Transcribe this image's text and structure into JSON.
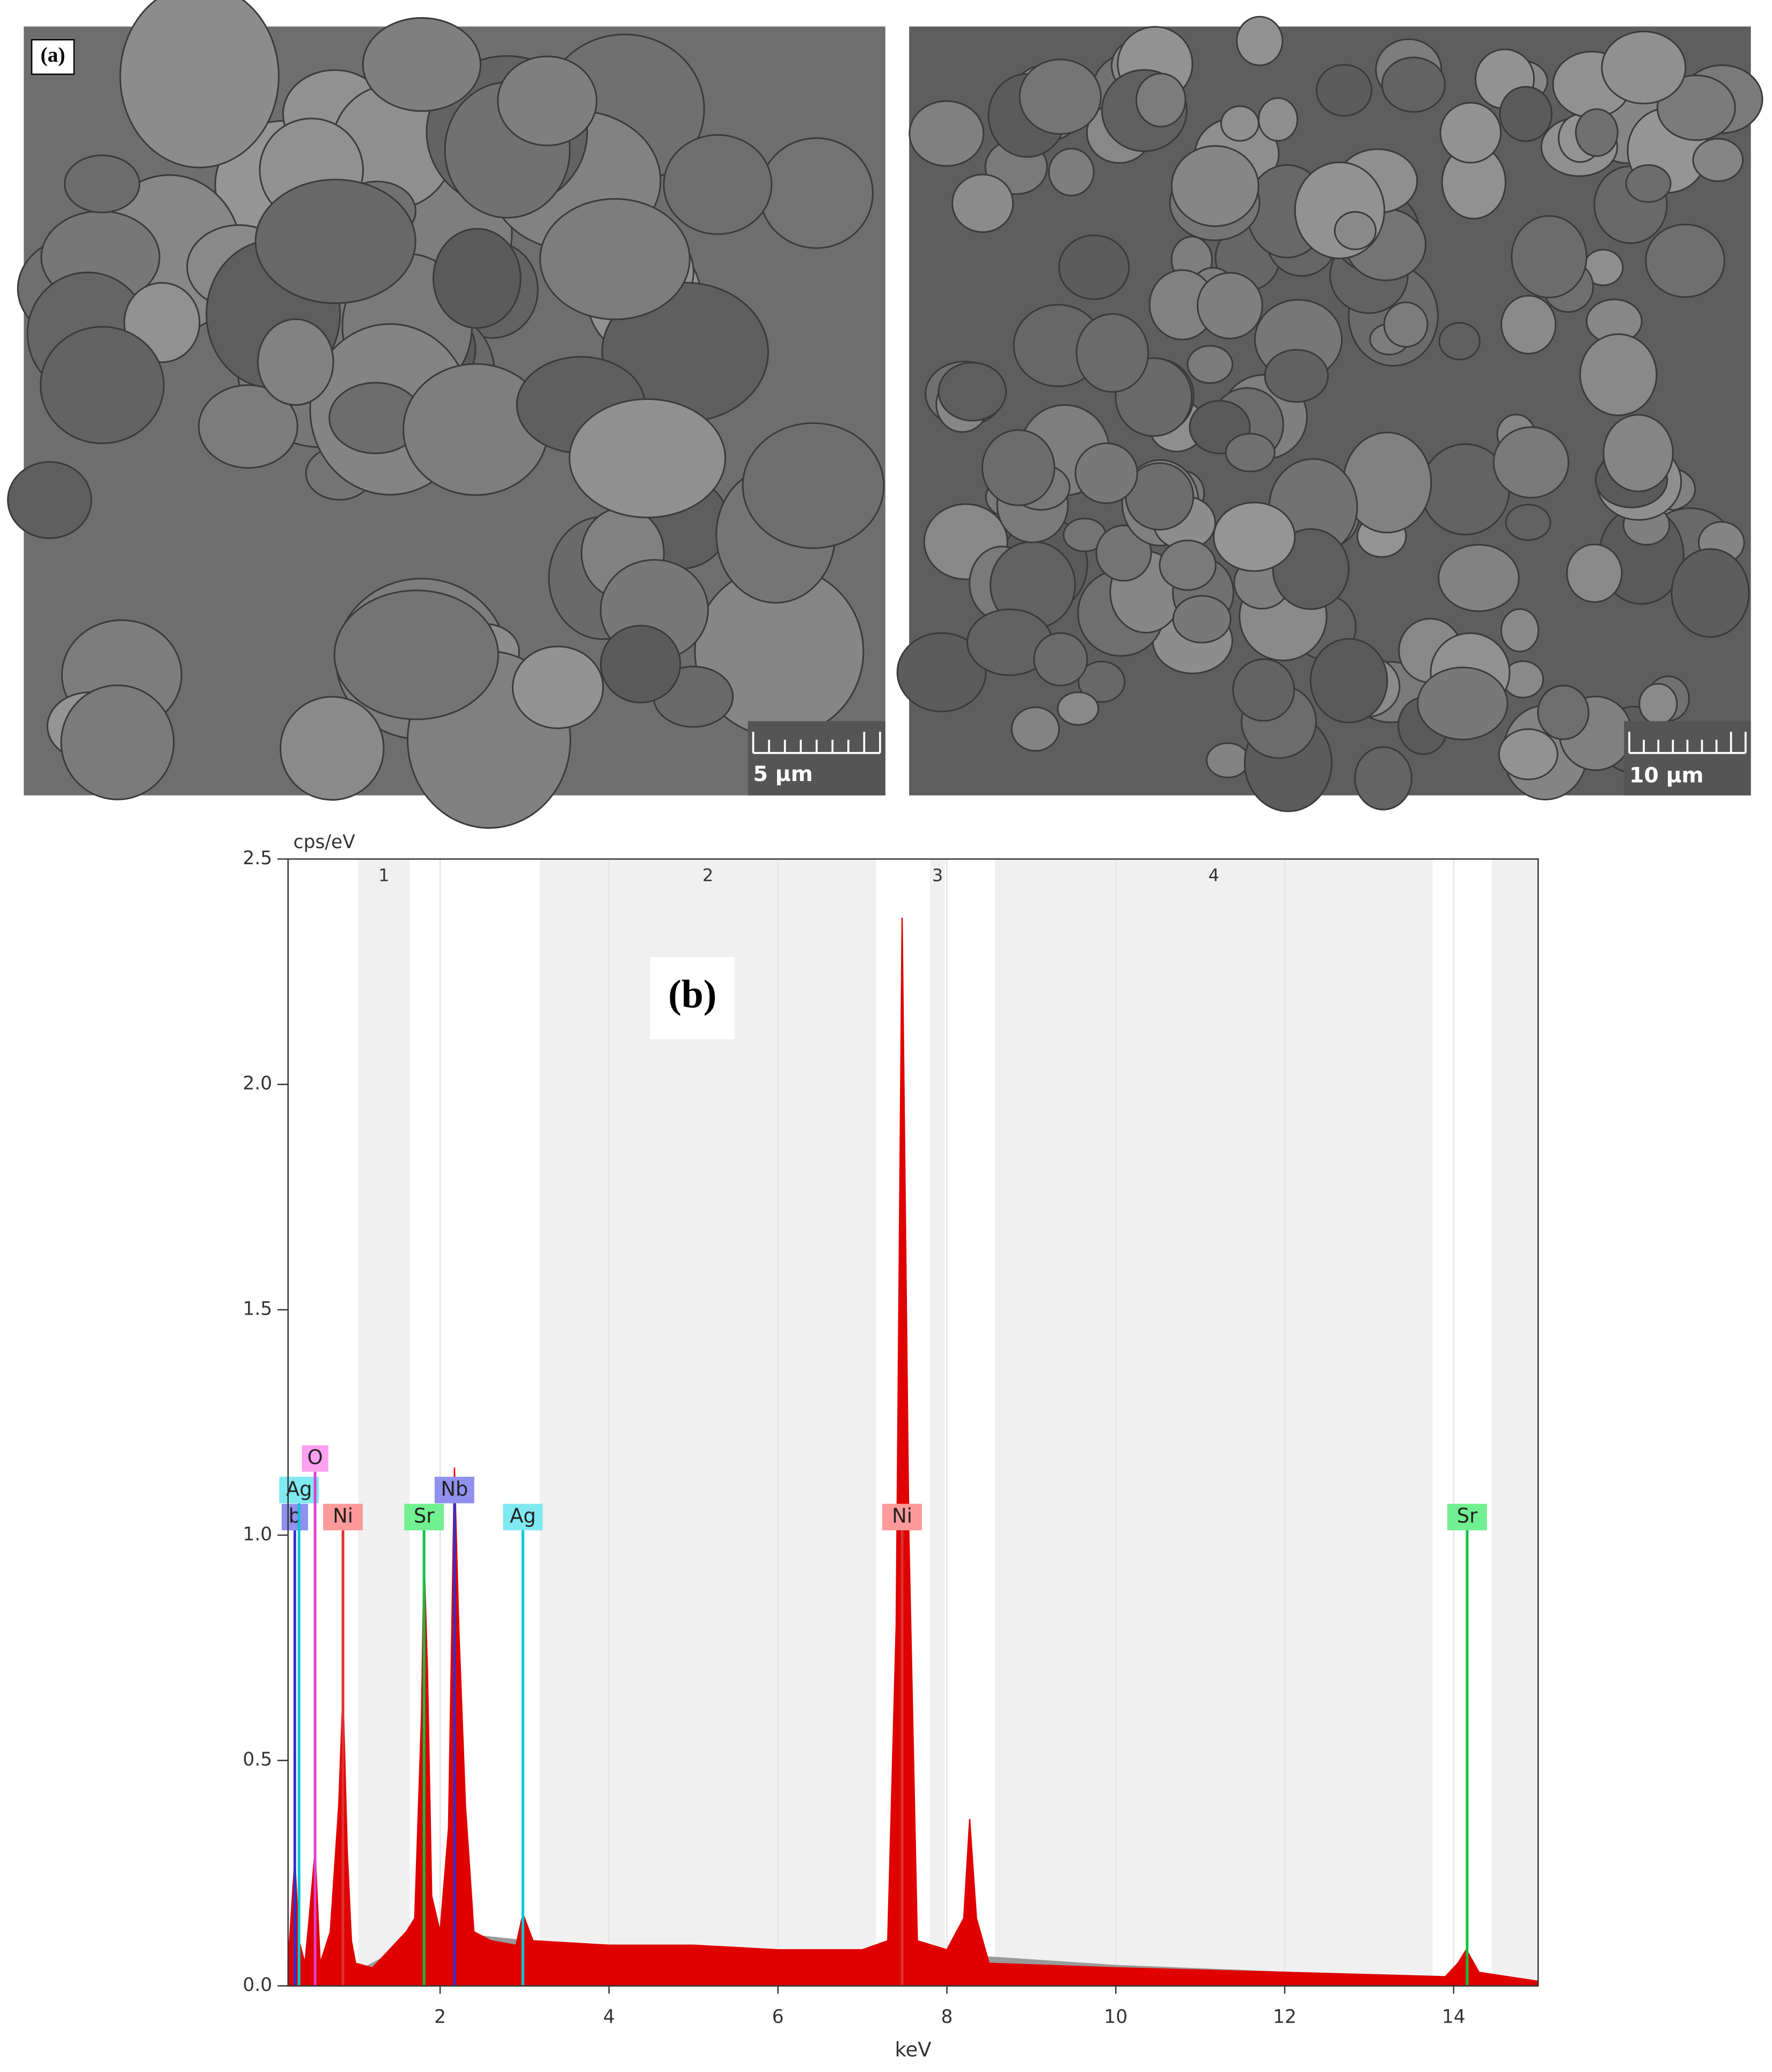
{
  "images": [
    {
      "label": "(a)",
      "scale_bar": "5 µm"
    },
    {
      "scale_bar": "10 µm"
    }
  ],
  "chart_data": {
    "type": "spectrum",
    "annotation": "(b)",
    "ylabel": "cps/eV",
    "xlabel": "keV",
    "xlim": [
      0.2,
      15
    ],
    "ylim": [
      0,
      2.5
    ],
    "xticks": [
      2,
      4,
      6,
      8,
      10,
      12,
      14
    ],
    "yticks": [
      {
        "value": 0,
        "label": "0.0"
      },
      0.5,
      {
        "value": 1,
        "label": "1.0"
      },
      1.5,
      {
        "value": 2,
        "label": "2.0"
      },
      2.5
    ],
    "grid": true,
    "regions": [
      {
        "label": "1",
        "range": [
          1.03,
          1.64
        ]
      },
      {
        "label": "2",
        "range": [
          3.18,
          7.16
        ]
      },
      {
        "label": "3",
        "range": [
          7.8,
          7.98
        ]
      },
      {
        "label": "4",
        "range": [
          8.57,
          13.75
        ]
      },
      {
        "label": null,
        "range": [
          14.45,
          15
        ]
      }
    ],
    "series": [
      {
        "color": "#9a9a9a",
        "x": [
          0.2,
          0.6,
          1.0,
          1.3,
          1.6,
          2.0,
          2.5,
          3.0,
          4.0,
          6.0,
          7.0,
          8.0,
          10.0,
          12.0,
          14.0,
          15.0
        ],
        "values": [
          0.0,
          0.02,
          0.03,
          0.06,
          0.09,
          0.12,
          0.11,
          0.1,
          0.09,
          0.08,
          0.075,
          0.07,
          0.045,
          0.03,
          0.02,
          0.01
        ]
      },
      {
        "color": "#e00000",
        "x": [
          0.2,
          0.28,
          0.33,
          0.4,
          0.45,
          0.52,
          0.58,
          0.7,
          0.8,
          0.85,
          0.9,
          0.95,
          1.0,
          1.2,
          1.4,
          1.6,
          1.7,
          1.78,
          1.81,
          1.85,
          1.9,
          2.0,
          2.1,
          2.17,
          2.22,
          2.3,
          2.4,
          2.6,
          2.9,
          2.98,
          3.1,
          4.0,
          5.0,
          6.0,
          7.0,
          7.3,
          7.4,
          7.47,
          7.55,
          7.65,
          8.0,
          8.2,
          8.27,
          8.35,
          8.5,
          10.0,
          12.0,
          13.9,
          14.05,
          14.15,
          14.3,
          15.0
        ],
        "values": [
          0.05,
          0.28,
          0.1,
          0.05,
          0.15,
          0.3,
          0.05,
          0.12,
          0.4,
          0.65,
          0.3,
          0.1,
          0.05,
          0.04,
          0.08,
          0.12,
          0.15,
          0.6,
          0.95,
          0.7,
          0.2,
          0.12,
          0.35,
          1.15,
          0.8,
          0.4,
          0.12,
          0.1,
          0.09,
          0.16,
          0.1,
          0.09,
          0.09,
          0.08,
          0.08,
          0.1,
          0.8,
          2.37,
          1.0,
          0.1,
          0.08,
          0.15,
          0.37,
          0.15,
          0.05,
          0.04,
          0.03,
          0.02,
          0.05,
          0.08,
          0.03,
          0.01
        ]
      }
    ],
    "peaks": [
      {
        "label": "b",
        "energy": 0.28,
        "height": 1.04,
        "color": "#3030d0",
        "box": "#9090f0"
      },
      {
        "label": "Ag",
        "energy": 0.33,
        "height": 1.1,
        "color": "#00c8d8",
        "box": "#80e8f0"
      },
      {
        "label": "O",
        "energy": 0.52,
        "height": 1.17,
        "color": "#e040d0",
        "box": "#ffa0f0"
      },
      {
        "label": "Ni",
        "energy": 0.85,
        "height": 1.04,
        "color": "#e03030",
        "box": "#ff9a9a"
      },
      {
        "label": "Sr",
        "energy": 1.81,
        "height": 1.04,
        "color": "#10c040",
        "box": "#70f090"
      },
      {
        "label": "Nb",
        "energy": 2.17,
        "height": 1.1,
        "color": "#3030d0",
        "box": "#9090f0"
      },
      {
        "label": "Ag",
        "energy": 2.98,
        "height": 1.04,
        "color": "#00c8d8",
        "box": "#80e8f0"
      },
      {
        "label": "Ni",
        "energy": 7.47,
        "height": 1.04,
        "color": "#e03030",
        "box": "#ff9a9a"
      },
      {
        "label": "Sr",
        "energy": 14.16,
        "height": 1.04,
        "color": "#10c040",
        "box": "#70f090"
      }
    ]
  }
}
